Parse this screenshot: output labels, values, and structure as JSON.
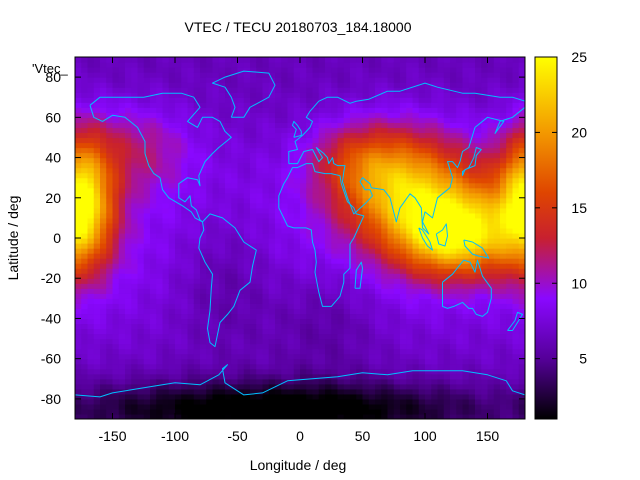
{
  "chart_data": {
    "type": "heatmap",
    "title": "VTEC / TECU 20180703_184.18000",
    "xlabel": "Longitude / deg",
    "ylabel": "Latitude / deg",
    "xlim": [
      -180,
      180
    ],
    "ylim": [
      -90,
      90
    ],
    "xticks": [
      -150,
      -100,
      -50,
      0,
      50,
      100,
      150
    ],
    "yticks": [
      -80,
      -60,
      -40,
      -20,
      0,
      20,
      40,
      60,
      80
    ],
    "colorbar": {
      "range": [
        1,
        25
      ],
      "ticks": [
        5,
        10,
        15,
        20,
        25
      ],
      "stops": [
        {
          "v": 1,
          "color": "#000000"
        },
        {
          "v": 5,
          "color": "#550099"
        },
        {
          "v": 9,
          "color": "#8a08ff"
        },
        {
          "v": 13,
          "color": "#c8202f"
        },
        {
          "v": 16,
          "color": "#df4500"
        },
        {
          "v": 20,
          "color": "#f39900"
        },
        {
          "v": 25,
          "color": "#ffff00"
        }
      ]
    },
    "legend_entry": "'Vtec_",
    "background_value": 7.5,
    "features": [
      {
        "lon": -175,
        "lat": 18,
        "amp": 16.5,
        "slon": 18,
        "slat": 22
      },
      {
        "lon": 125,
        "lat": 2,
        "amp": 14.5,
        "slon": 32,
        "slat": 14
      },
      {
        "lon": 100,
        "lat": 22,
        "amp": 9.0,
        "slon": 40,
        "slat": 20
      },
      {
        "lon": 70,
        "lat": 30,
        "amp": 6.5,
        "slon": 30,
        "slat": 18
      },
      {
        "lon": 40,
        "lat": 40,
        "amp": 3.5,
        "slon": 25,
        "slat": 12
      },
      {
        "lon": -130,
        "lat": 45,
        "amp": 4.0,
        "slon": 30,
        "slat": 15
      },
      {
        "lon": -60,
        "lat": -20,
        "amp": -2.5,
        "slon": 30,
        "slat": 25
      },
      {
        "lon": 20,
        "lat": -40,
        "amp": -2.0,
        "slon": 30,
        "slat": 20
      },
      {
        "lon": -20,
        "lat": -85,
        "amp": -6.5,
        "slon": 120,
        "slat": 10
      }
    ],
    "coastline_color": "#00bfff"
  }
}
